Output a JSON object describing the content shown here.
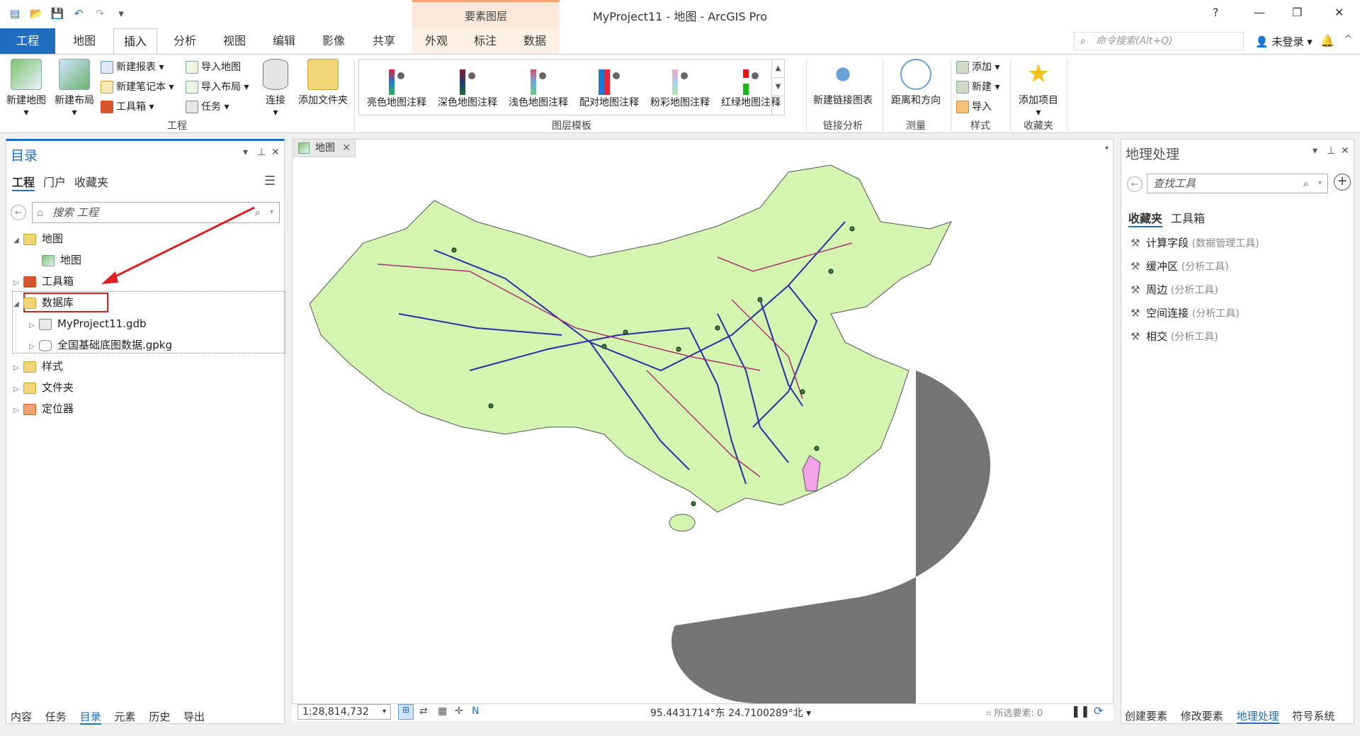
{
  "window": {
    "title": "MyProject11 - 地图 - ArcGIS Pro",
    "context_group": "要素图层",
    "help": "?",
    "minimize": "—",
    "restore": "❐",
    "close": "✕"
  },
  "tabs": [
    "工程",
    "地图",
    "插入",
    "分析",
    "视图",
    "编辑",
    "影像",
    "共享",
    "外观",
    "标注",
    "数据"
  ],
  "command_search": {
    "placeholder": "命令搜索(Alt+Q)"
  },
  "user": {
    "label": "未登录"
  },
  "ribbon": {
    "project": {
      "new_map": "新建地图",
      "new_layout": "新建布局",
      "new_report": "新建报表",
      "new_notebook": "新建笔记本",
      "toolbox": "工具箱",
      "import_map": "导入地图",
      "import_layout": "导入布局",
      "task": "任务",
      "connect": "连接",
      "add_folder": "添加文件夹",
      "group_label": "工程"
    },
    "layer_templates": {
      "items": [
        "亮色地图注释",
        "深色地图注释",
        "浅色地图注释",
        "配对地图注释",
        "粉彩地图注释",
        "红绿地图注释"
      ],
      "group_label": "图层模板"
    },
    "link_analysis": {
      "new_link_chart": "新建链接图表",
      "group_label": "链接分析"
    },
    "measure": {
      "distance_direction": "距离和方向",
      "group_label": "测量"
    },
    "styles": {
      "add": "添加",
      "new": "新建",
      "import": "导入",
      "group_label": "样式"
    },
    "favorites": {
      "add_item": "添加项目",
      "group_label": "收藏夹"
    }
  },
  "catalog": {
    "title": "目录",
    "tabs": [
      "工程",
      "门户",
      "收藏夹"
    ],
    "search_placeholder": "搜索 工程",
    "tree": [
      {
        "label": "地图"
      },
      {
        "label": "地图"
      },
      {
        "label": "工具箱"
      },
      {
        "label": "数据库"
      },
      {
        "label": "MyProject11.gdb"
      },
      {
        "label": "全国基础底图数据.gpkg"
      },
      {
        "label": "样式"
      },
      {
        "label": "文件夹"
      },
      {
        "label": "定位器"
      }
    ],
    "bottom_tabs": [
      "内容",
      "任务",
      "目录",
      "元素",
      "历史",
      "导出"
    ]
  },
  "map": {
    "tab_label": "地图",
    "scale": "1:28,814,732",
    "coordinates": "95.4431714°东 24.7100289°北",
    "selected_features": "所选要素: 0"
  },
  "geoprocessing": {
    "title": "地理处理",
    "search_placeholder": "查找工具",
    "tabs": [
      "收藏夹",
      "工具箱"
    ],
    "tools": [
      {
        "name": "计算字段",
        "toolbox": "(数据管理工具)"
      },
      {
        "name": "缓冲区",
        "toolbox": "(分析工具)"
      },
      {
        "name": "周边",
        "toolbox": "(分析工具)"
      },
      {
        "name": "空间连接",
        "toolbox": "(分析工具)"
      },
      {
        "name": "相交",
        "toolbox": "(分析工具)"
      }
    ],
    "bottom_tabs": [
      "创建要素",
      "修改要素",
      "地理处理",
      "符号系统"
    ]
  },
  "colors": {
    "accent": "#1f6ec2",
    "land": "#d4f5b0",
    "sea": "#6e6e6e",
    "road_blue": "#2b2ba8",
    "road_purple": "#a8306e",
    "taiwan": "#f2a2e6",
    "highlight_red": "#e02020"
  }
}
